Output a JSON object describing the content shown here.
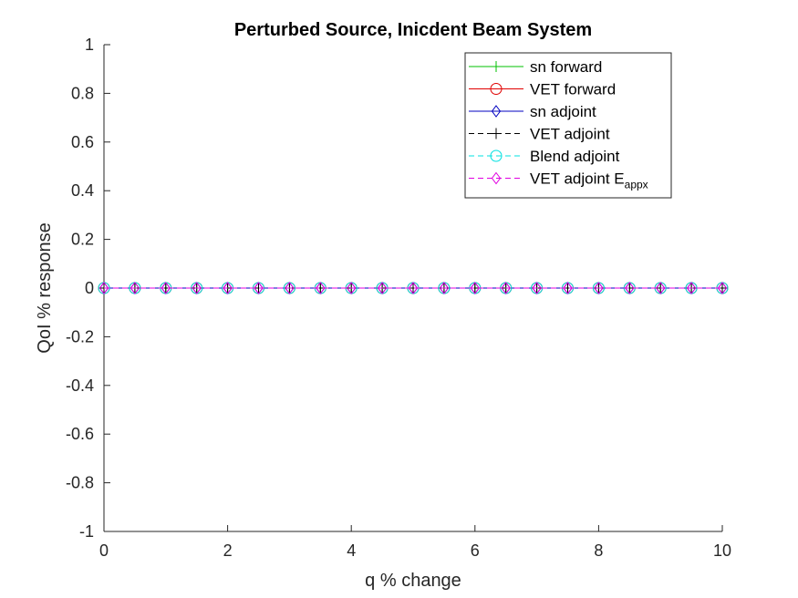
{
  "chart_data": {
    "type": "line",
    "title": "Perturbed Source, Inicdent Beam System",
    "xlabel": "q % change",
    "ylabel": "QoI % response",
    "xlim": [
      0,
      10
    ],
    "ylim": [
      -1,
      1
    ],
    "xticks": [
      0,
      2,
      4,
      6,
      8,
      10
    ],
    "yticks": [
      -1,
      -0.8,
      -0.6,
      -0.4,
      -0.2,
      0,
      0.2,
      0.4,
      0.6,
      0.8,
      1
    ],
    "xtick_labels": [
      "0",
      "2",
      "4",
      "6",
      "8",
      "10"
    ],
    "ytick_labels": [
      "-1",
      "-0.8",
      "-0.6",
      "-0.4",
      "-0.2",
      "0",
      "0.2",
      "0.4",
      "0.6",
      "0.8",
      "1"
    ],
    "grid": false,
    "legend_position": "top-right",
    "x": [
      0,
      0.5,
      1,
      1.5,
      2,
      2.5,
      3,
      3.5,
      4,
      4.5,
      5,
      5.5,
      6,
      6.5,
      7,
      7.5,
      8,
      8.5,
      9,
      9.5,
      10
    ],
    "series": [
      {
        "name": "sn forward",
        "color": "#00c000",
        "marker": "plus",
        "dash": "solid",
        "values": [
          0,
          0,
          0,
          0,
          0,
          0,
          0,
          0,
          0,
          0,
          0,
          0,
          0,
          0,
          0,
          0,
          0,
          0,
          0,
          0,
          0
        ]
      },
      {
        "name": "VET forward",
        "color": "#e00000",
        "marker": "circle",
        "dash": "solid",
        "values": [
          0,
          0,
          0,
          0,
          0,
          0,
          0,
          0,
          0,
          0,
          0,
          0,
          0,
          0,
          0,
          0,
          0,
          0,
          0,
          0,
          0
        ]
      },
      {
        "name": "sn adjoint",
        "color": "#0000c0",
        "marker": "diamond",
        "dash": "solid",
        "values": [
          0,
          0,
          0,
          0,
          0,
          0,
          0,
          0,
          0,
          0,
          0,
          0,
          0,
          0,
          0,
          0,
          0,
          0,
          0,
          0,
          0
        ]
      },
      {
        "name": "VET adjoint",
        "color": "#000000",
        "marker": "plus",
        "dash": "dashed",
        "values": [
          0,
          0,
          0,
          0,
          0,
          0,
          0,
          0,
          0,
          0,
          0,
          0,
          0,
          0,
          0,
          0,
          0,
          0,
          0,
          0,
          0
        ]
      },
      {
        "name": "Blend adjoint",
        "color": "#00e0e0",
        "marker": "circle",
        "dash": "dashed",
        "values": [
          0,
          0,
          0,
          0,
          0,
          0,
          0,
          0,
          0,
          0,
          0,
          0,
          0,
          0,
          0,
          0,
          0,
          0,
          0,
          0,
          0
        ]
      },
      {
        "name": "VET adjoint E",
        "name_subscript": "appx",
        "color": "#e000e0",
        "marker": "diamond",
        "dash": "dashed",
        "values": [
          0,
          0,
          0,
          0,
          0,
          0,
          0,
          0,
          0,
          0,
          0,
          0,
          0,
          0,
          0,
          0,
          0,
          0,
          0,
          0,
          0
        ]
      }
    ]
  }
}
